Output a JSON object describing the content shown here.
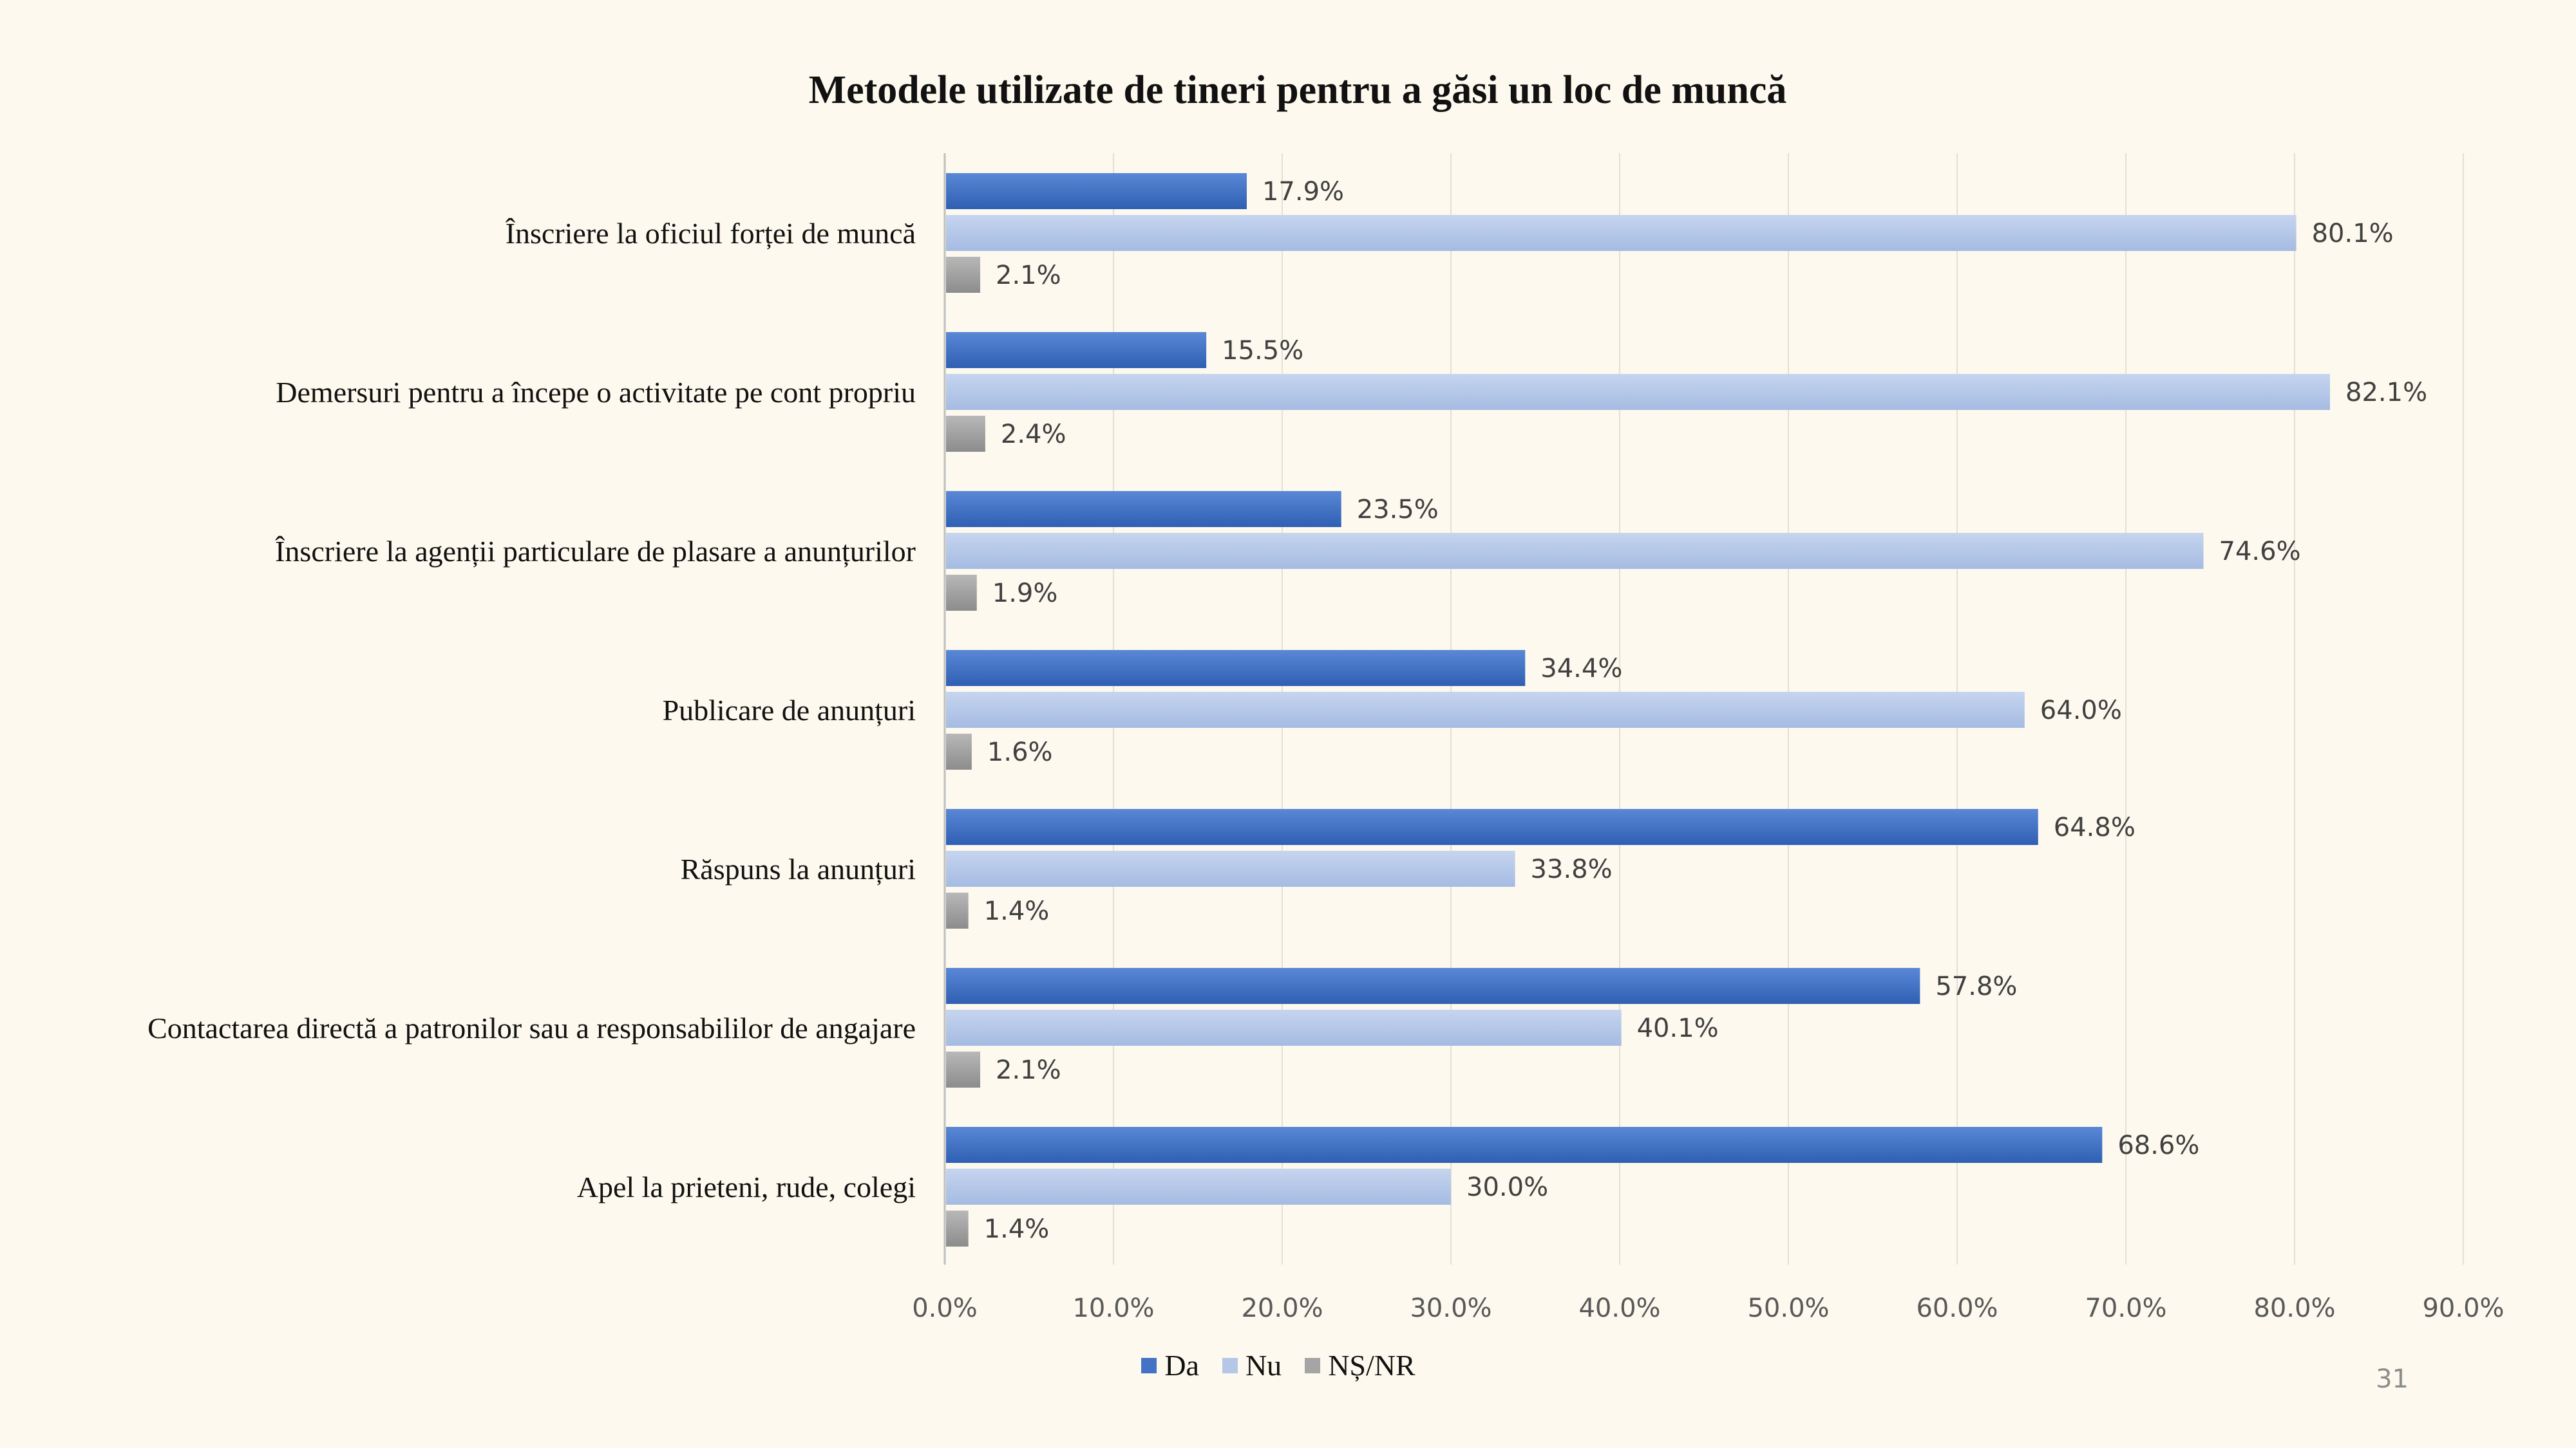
{
  "page_number": "31",
  "chart_data": {
    "type": "bar",
    "orientation": "horizontal",
    "title": "Metodele utilizate de tineri pentru a găsi un loc de muncă",
    "categories": [
      "Înscriere la oficiul forței de muncă",
      "Demersuri pentru a începe o activitate pe cont propriu",
      "Înscriere la agenții particulare de plasare a anunțurilor",
      "Publicare de anunțuri",
      "Răspuns la anunțuri",
      "Contactarea directă a patronilor sau a responsabililor de angajare",
      "Apel la prieteni, rude, colegi"
    ],
    "series": [
      {
        "name": "Da",
        "color": "#4472c4",
        "values": [
          17.9,
          15.5,
          23.5,
          34.4,
          64.8,
          57.8,
          68.6
        ]
      },
      {
        "name": "Nu",
        "color": "#b4c7e7",
        "values": [
          80.1,
          82.1,
          74.6,
          64.0,
          33.8,
          40.1,
          30.0
        ]
      },
      {
        "name": "NȘ/NR",
        "color": "#a5a5a5",
        "values": [
          2.1,
          2.4,
          1.9,
          1.6,
          1.4,
          2.1,
          1.4
        ]
      }
    ],
    "xlim": [
      0,
      90
    ],
    "xticks": [
      "0.0%",
      "10.0%",
      "20.0%",
      "30.0%",
      "40.0%",
      "50.0%",
      "60.0%",
      "70.0%",
      "80.0%",
      "90.0%"
    ],
    "value_suffix": "%",
    "grid": true,
    "legend_position": "bottom"
  }
}
